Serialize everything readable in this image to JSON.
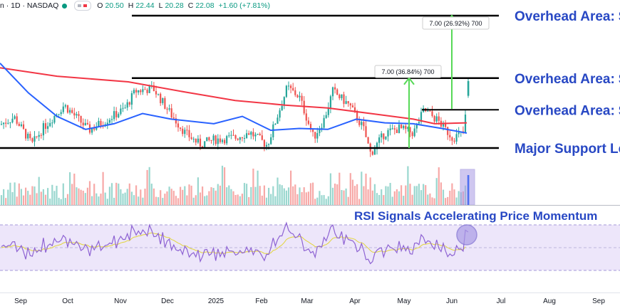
{
  "header": {
    "symbol_line": "n · 1D · NASDAQ",
    "open_label": "O",
    "open": "20.50",
    "high_label": "H",
    "high": "22.44",
    "low_label": "L",
    "low": "20.28",
    "close_label": "C",
    "close": "22.08",
    "change": "+1.60 (+7.81%)"
  },
  "colors": {
    "up": "#26a69a",
    "down": "#ef5350",
    "ma_fast": "#2962ff",
    "ma_slow": "#f23645",
    "annotation_text": "#2848c4",
    "measure_arrow": "#57d957",
    "rsi_line": "#8e63d3",
    "rsi_signal": "#e2d53b",
    "rsi_band": "#ede6fa",
    "highlight_fill": "#a99be5"
  },
  "chart_data": {
    "type": "candlestick",
    "x_tick_labels": [
      "Sep",
      "Oct",
      "Nov",
      "Dec",
      "2025",
      "Feb",
      "Mar",
      "Apr",
      "May",
      "Jun",
      "Jul",
      "Aug",
      "Sep"
    ],
    "last_ohlc": {
      "open": 20.5,
      "high": 22.44,
      "low": 20.28,
      "close": 22.08
    },
    "levels": [
      {
        "label": "Overhead Area: $",
        "price": 29.1
      },
      {
        "label": "Overhead Area: $",
        "price": 22.4
      },
      {
        "label": "Overhead Area: $",
        "price": 19.0
      },
      {
        "label": "Major Support Lev",
        "price": 14.9
      }
    ],
    "measurements": [
      {
        "label": "7.00 (36.84%) 700"
      },
      {
        "label": "7.00 (26.92%) 700"
      }
    ],
    "overlays": [
      "50-day moving average",
      "200-day moving average"
    ],
    "volume_panel": true,
    "rsi": {
      "title": "RSI Signals Accelerating Price Momentum",
      "upper": 70,
      "lower": 30,
      "band_color": "#ede6fa"
    },
    "grid": false,
    "legend": "none"
  }
}
